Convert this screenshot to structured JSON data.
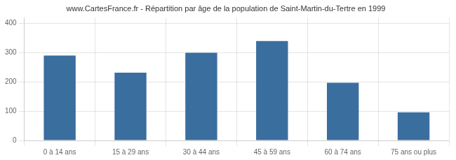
{
  "chart_data": {
    "type": "bar",
    "title": "www.CartesFrance.fr - Répartition par âge de la population de Saint-Martin-du-Tertre en 1999",
    "categories": [
      "0 à 14 ans",
      "15 à 29 ans",
      "30 à 44 ans",
      "45 à 59 ans",
      "60 à 74 ans",
      "75 ans ou plus"
    ],
    "values": [
      290,
      232,
      300,
      340,
      197,
      96
    ],
    "color": "#3a6e9f",
    "ylim": [
      0,
      420
    ],
    "yticks": [
      0,
      100,
      200,
      300,
      400
    ],
    "grid": true
  }
}
